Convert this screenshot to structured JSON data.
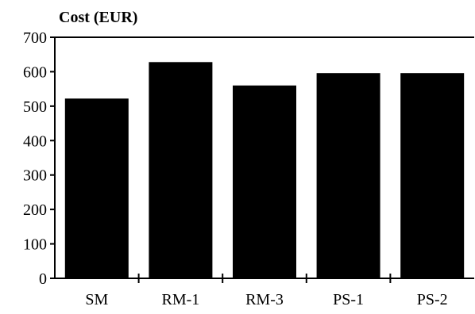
{
  "chart_data": {
    "type": "bar",
    "title": "",
    "xlabel": "",
    "ylabel": "Cost (EUR)",
    "categories": [
      "SM",
      "RM-1",
      "RM-3",
      "PS-1",
      "PS-2"
    ],
    "values": [
      522,
      628,
      560,
      596,
      596
    ],
    "ylim": [
      0,
      700
    ],
    "yticks": [
      0,
      100,
      200,
      300,
      400,
      500,
      600,
      700
    ],
    "grid": false,
    "legend": "none",
    "bar_color": "#000000"
  }
}
